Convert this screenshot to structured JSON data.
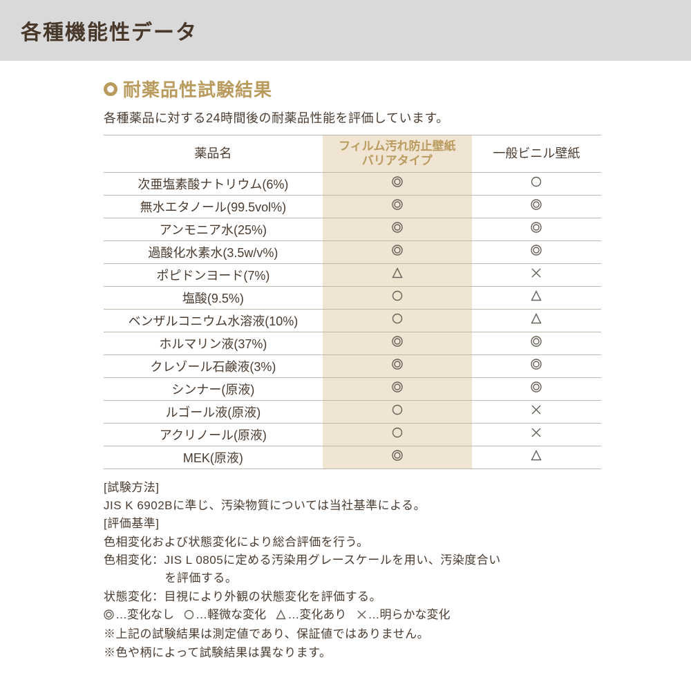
{
  "colors": {
    "title_bg": "#d9d9d9",
    "title_text": "#48382a",
    "accent": "#b99b5e",
    "body_text": "#4a3c30",
    "highlight_bg": "#f0e4d2",
    "border": "#c0b8ac",
    "symbol": "#666058"
  },
  "fontsizes": {
    "title": 30,
    "subtitle": 26,
    "body": 18,
    "notes": 17
  },
  "page_title": "各種機能性データ",
  "subtitle": "耐薬品性試験結果",
  "description": "各種薬品に対する24時間後の耐薬品性能を評価しています。",
  "table": {
    "columns": [
      "薬品名",
      "フィルム汚れ防止壁紙\nバリアタイプ",
      "一般ビニル壁紙"
    ],
    "rows": [
      {
        "name": "次亜塩素酸ナトリウム(6%)",
        "film": "dcirc",
        "gen": "circ"
      },
      {
        "name": "無水エタノール(99.5vol%)",
        "film": "dcirc",
        "gen": "dcirc"
      },
      {
        "name": "アンモニア水(25%)",
        "film": "dcirc",
        "gen": "dcirc"
      },
      {
        "name": "過酸化水素水(3.5w/v%)",
        "film": "dcirc",
        "gen": "dcirc"
      },
      {
        "name": "ポピドンヨード(7%)",
        "film": "tri",
        "gen": "cross"
      },
      {
        "name": "塩酸(9.5%)",
        "film": "circ",
        "gen": "tri"
      },
      {
        "name": "ベンザルコニウム水溶液(10%)",
        "film": "circ",
        "gen": "tri"
      },
      {
        "name": "ホルマリン液(37%)",
        "film": "dcirc",
        "gen": "dcirc"
      },
      {
        "name": "クレゾール石鹸液(3%)",
        "film": "dcirc",
        "gen": "dcirc"
      },
      {
        "name": "シンナー(原液)",
        "film": "dcirc",
        "gen": "dcirc"
      },
      {
        "name": "ルゴール液(原液)",
        "film": "circ",
        "gen": "cross"
      },
      {
        "name": "アクリノール(原液)",
        "film": "circ",
        "gen": "cross"
      },
      {
        "name": "MEK(原液)",
        "film": "dcirc",
        "gen": "tri"
      }
    ]
  },
  "notes": {
    "method_label": "[試験方法]",
    "method_text": "JIS K 6902Bに準じ、汚染物質については当社基準による。",
    "criteria_label": "[評価基準]",
    "criteria_line1": "色相変化および状態変化により総合評価を行う。",
    "criteria_line2a": "色相変化：JIS L 0805に定める汚染用グレースケールを用い、汚染度合い",
    "criteria_line2b": "を評価する。",
    "criteria_line3": "状態変化：目視により外観の状態変化を評価する。",
    "legend": {
      "dcirc": "…変化なし",
      "circ": "…軽微な変化",
      "tri": "…変化あり",
      "cross": "…明らかな変化"
    },
    "disclaimer1": "※上記の試験結果は測定値であり、保証値ではありません。",
    "disclaimer2": "※色や柄によって試験結果は異なります。"
  },
  "symbols": {
    "size": 16,
    "stroke": "#666058",
    "types": {
      "dcirc": "double-circle",
      "circ": "single-circle",
      "tri": "triangle",
      "cross": "cross"
    }
  }
}
